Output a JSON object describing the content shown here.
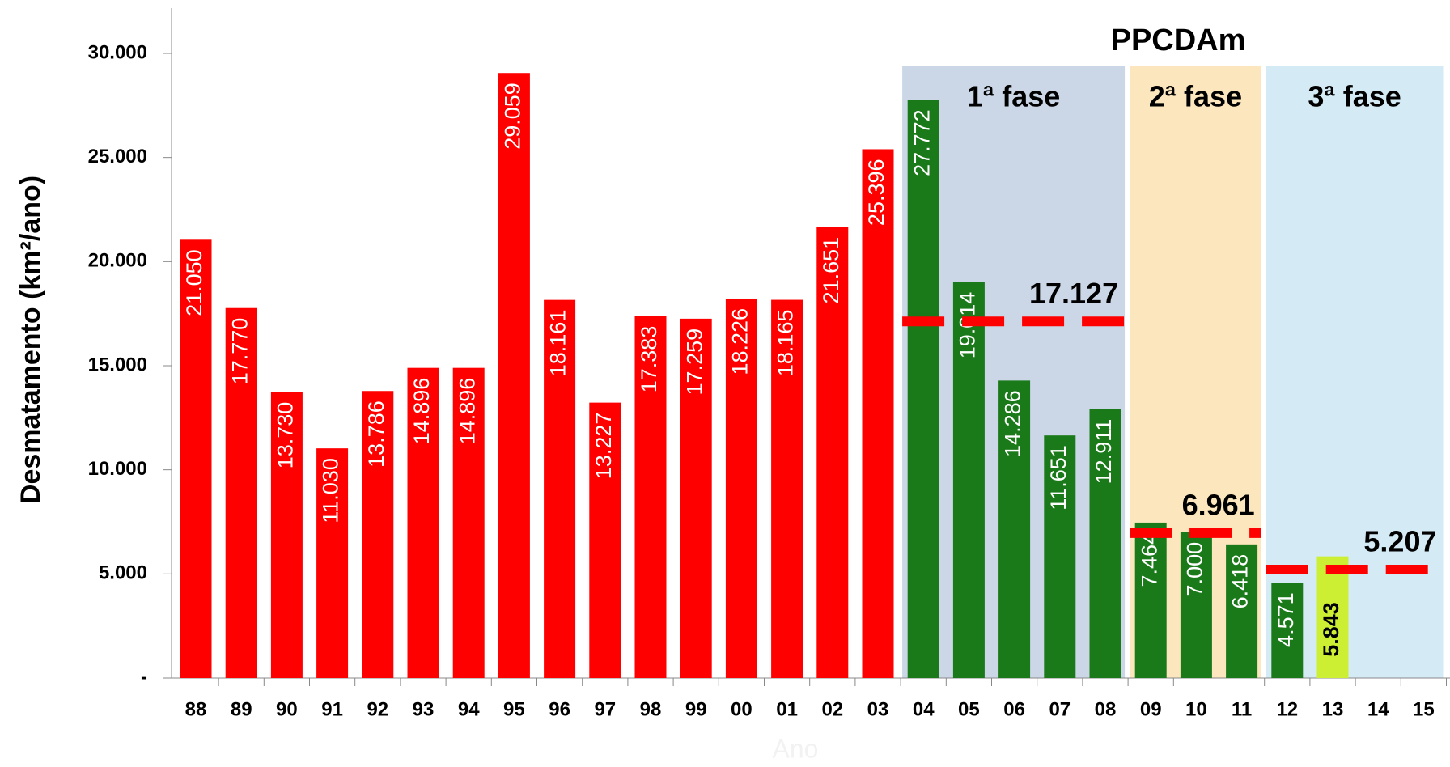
{
  "chart_data": {
    "type": "bar",
    "title": "PPCDAm",
    "y_label": "Desmatamento (km²/ano)",
    "x_label": "Ano",
    "categories": [
      "88",
      "89",
      "90",
      "91",
      "92",
      "93",
      "94",
      "95",
      "96",
      "97",
      "98",
      "99",
      "00",
      "01",
      "02",
      "03",
      "04",
      "05",
      "06",
      "07",
      "08",
      "09",
      "10",
      "11",
      "12",
      "13",
      "14",
      "15"
    ],
    "values": [
      21050,
      17770,
      13730,
      11030,
      13786,
      14896,
      14896,
      29059,
      18161,
      13227,
      17383,
      17259,
      18226,
      18165,
      21651,
      25396,
      27772,
      19014,
      14286,
      11651,
      12911,
      7464,
      7000,
      6418,
      4571,
      5843,
      null,
      null
    ],
    "value_labels": [
      "21.050",
      "17.770",
      "13.730",
      "11.030",
      "13.786",
      "14.896",
      "14.896",
      "29.059",
      "18.161",
      "13.227",
      "17.383",
      "17.259",
      "18.226",
      "18.165",
      "21.651",
      "25.396",
      "27.772",
      "19.014",
      "14.286",
      "11.651",
      "12.911",
      "7.464",
      "7.000",
      "6.418",
      "4.571",
      "5.843",
      null,
      null
    ],
    "colors": [
      "#ff0000",
      "#ff0000",
      "#ff0000",
      "#ff0000",
      "#ff0000",
      "#ff0000",
      "#ff0000",
      "#ff0000",
      "#ff0000",
      "#ff0000",
      "#ff0000",
      "#ff0000",
      "#ff0000",
      "#ff0000",
      "#ff0000",
      "#ff0000",
      "#1a7a1a",
      "#1a7a1a",
      "#1a7a1a",
      "#1a7a1a",
      "#1a7a1a",
      "#1a7a1a",
      "#1a7a1a",
      "#1a7a1a",
      "#1a7a1a",
      "#ccee33",
      "#1a7a1a",
      "#1a7a1a"
    ],
    "label_colors": [
      "#ffffff",
      "#ffffff",
      "#ffffff",
      "#ffffff",
      "#ffffff",
      "#ffffff",
      "#ffffff",
      "#ffffff",
      "#ffffff",
      "#ffffff",
      "#ffffff",
      "#ffffff",
      "#ffffff",
      "#ffffff",
      "#ffffff",
      "#ffffff",
      "#ffffff",
      "#ffffff",
      "#ffffff",
      "#ffffff",
      "#ffffff",
      "#ffffff",
      "#ffffff",
      "#ffffff",
      "#ffffff",
      "#000000",
      "#ffffff",
      "#ffffff"
    ],
    "ylim": [
      0,
      30000
    ],
    "yticks": [
      {
        "value": 0,
        "label": "-"
      },
      {
        "value": 5000,
        "label": "5.000"
      },
      {
        "value": 10000,
        "label": "10.000"
      },
      {
        "value": 15000,
        "label": "15.000"
      },
      {
        "value": 20000,
        "label": "20.000"
      },
      {
        "value": 25000,
        "label": "25.000"
      },
      {
        "value": 30000,
        "label": "30.000"
      }
    ],
    "phases": [
      {
        "label": "1ª fase",
        "color": "#cbd7e6",
        "average": 17127,
        "average_label": "17.127"
      },
      {
        "label": "2ª fase",
        "color": "#fbe6bd",
        "average": 6961,
        "average_label": "6.961"
      },
      {
        "label": "3ª fase",
        "color": "#d4ebf6",
        "average": 5207,
        "average_label": "5.207"
      }
    ],
    "average_color": "#ff0000"
  }
}
